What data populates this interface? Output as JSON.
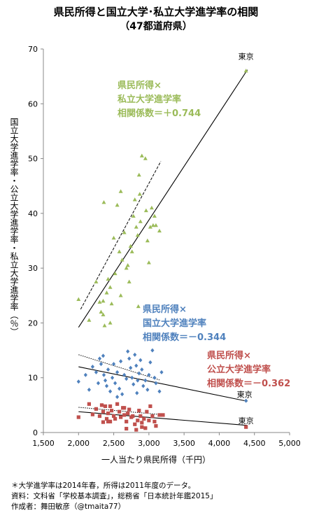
{
  "title": "県民所得と国立大学･私立大学進学率の相関",
  "subtitle": "（47都道府県）",
  "notes": [
    "＊大学進学率は2014年春，所得は2011年度のデータ。",
    "資料：文科省「学校基本調査」，総務省「日本統計年鑑2015」",
    "作成者：舞田敏彦（@tmaita77）"
  ],
  "chart_data": {
    "type": "scatter",
    "xlabel": "一人当たり県民所得（千円）",
    "ylabel": "国立大学進学率・公立大学進学率・私立大学進学率（％）",
    "xlim": [
      1500,
      5000
    ],
    "ylim": [
      0,
      70
    ],
    "xticks": [
      "1,500",
      "2,000",
      "2,500",
      "3,000",
      "3,500",
      "4,000",
      "4,500",
      "5,000"
    ],
    "xtick_values": [
      1500,
      2000,
      2500,
      3000,
      3500,
      4000,
      4500,
      5000
    ],
    "yticks": [
      "0",
      "10",
      "20",
      "30",
      "40",
      "50",
      "60",
      "70"
    ],
    "ytick_values": [
      0,
      10,
      20,
      30,
      40,
      50,
      60,
      70
    ],
    "grid": false,
    "series": [
      {
        "name": "県民所得×私立大学進学率",
        "label_lines": [
          "県民所得×",
          "私立大学進学率",
          "相関係数＝＋0.744"
        ],
        "color": "#9bbb59",
        "marker": "triangle",
        "regression": [
          [
            2000,
            19.2
          ],
          [
            4400,
            66.2
          ]
        ],
        "dashed": [
          [
            2030,
            22.5
          ],
          [
            3170,
            49.5
          ]
        ],
        "points": [
          [
            4380,
            66.0
          ],
          [
            2000,
            24.3
          ],
          [
            2150,
            20.5
          ],
          [
            2250,
            27.5
          ],
          [
            2300,
            23.8
          ],
          [
            2320,
            22.0
          ],
          [
            2350,
            21.5
          ],
          [
            2370,
            19.5
          ],
          [
            2360,
            42.0
          ],
          [
            2400,
            25.5
          ],
          [
            2420,
            28.0
          ],
          [
            2450,
            26.5
          ],
          [
            2470,
            23.5
          ],
          [
            2500,
            35.5
          ],
          [
            2520,
            29.0
          ],
          [
            2550,
            41.5
          ],
          [
            2580,
            33.0
          ],
          [
            2600,
            44.0
          ],
          [
            2620,
            31.5
          ],
          [
            2650,
            36.5
          ],
          [
            2680,
            30.0
          ],
          [
            2700,
            30.5
          ],
          [
            2720,
            27.5
          ],
          [
            2740,
            34.0
          ],
          [
            2760,
            33.0
          ],
          [
            2780,
            39.5
          ],
          [
            2800,
            42.5
          ],
          [
            2820,
            37.5
          ],
          [
            2840,
            36.0
          ],
          [
            2860,
            47.0
          ],
          [
            2870,
            43.5
          ],
          [
            2880,
            38.5
          ],
          [
            2900,
            50.5
          ],
          [
            2950,
            50.0
          ],
          [
            2960,
            40.5
          ],
          [
            2980,
            35.0
          ],
          [
            3000,
            31.0
          ],
          [
            3020,
            37.5
          ],
          [
            3040,
            41.0
          ],
          [
            3060,
            37.8
          ],
          [
            3080,
            39.5
          ],
          [
            3100,
            37.8
          ],
          [
            3150,
            36.8
          ],
          [
            2850,
            23.0
          ],
          [
            2600,
            25.0
          ],
          [
            2350,
            24.0
          ],
          [
            2450,
            20.0
          ]
        ]
      },
      {
        "name": "県民所得×国立大学進学率",
        "label_lines": [
          "県民所得×",
          "国立大学進学率",
          "相関係数＝－0.344"
        ],
        "color": "#4f81bd",
        "marker": "diamond",
        "regression": [
          [
            2000,
            12.0
          ],
          [
            4400,
            5.7
          ]
        ],
        "dashed": [
          [
            2000,
            14.2
          ],
          [
            3150,
            9.6
          ]
        ],
        "points": [
          [
            4380,
            5.8
          ],
          [
            2000,
            9.3
          ],
          [
            2100,
            10.5
          ],
          [
            2150,
            7.8
          ],
          [
            2200,
            12.0
          ],
          [
            2250,
            11.0
          ],
          [
            2280,
            9.0
          ],
          [
            2300,
            13.5
          ],
          [
            2320,
            12.5
          ],
          [
            2350,
            14.0
          ],
          [
            2360,
            10.5
          ],
          [
            2380,
            9.5
          ],
          [
            2400,
            8.5
          ],
          [
            2420,
            11.5
          ],
          [
            2450,
            7.5
          ],
          [
            2480,
            10.0
          ],
          [
            2500,
            12.5
          ],
          [
            2520,
            9.0
          ],
          [
            2550,
            11.0
          ],
          [
            2580,
            8.0
          ],
          [
            2600,
            13.0
          ],
          [
            2620,
            7.0
          ],
          [
            2650,
            10.5
          ],
          [
            2680,
            9.8
          ],
          [
            2700,
            14.8
          ],
          [
            2720,
            13.5
          ],
          [
            2740,
            11.8
          ],
          [
            2760,
            10.0
          ],
          [
            2780,
            8.8
          ],
          [
            2800,
            14.2
          ],
          [
            2820,
            12.2
          ],
          [
            2840,
            9.5
          ],
          [
            2860,
            10.8
          ],
          [
            2880,
            13.2
          ],
          [
            2900,
            11.5
          ],
          [
            2920,
            8.5
          ],
          [
            2950,
            9.5
          ],
          [
            2980,
            7.8
          ],
          [
            3000,
            10.5
          ],
          [
            3020,
            12.8
          ],
          [
            3050,
            15.0
          ],
          [
            3080,
            10.0
          ],
          [
            3100,
            9.0
          ],
          [
            3150,
            7.5
          ],
          [
            3180,
            11.0
          ],
          [
            2550,
            6.5
          ],
          [
            2830,
            7.2
          ]
        ]
      },
      {
        "name": "県民所得×公立大学進学率",
        "label_lines": [
          "県民所得×",
          "公立大学進学率",
          "相関係数＝－0.362"
        ],
        "color": "#c0504d",
        "marker": "square",
        "regression": [
          [
            2000,
            3.8
          ],
          [
            4400,
            1.3
          ]
        ],
        "dashed": [
          [
            2000,
            4.6
          ],
          [
            3150,
            3.3
          ]
        ],
        "points": [
          [
            4380,
            1.0
          ],
          [
            2000,
            2.8
          ],
          [
            2150,
            5.2
          ],
          [
            2200,
            3.3
          ],
          [
            2250,
            4.3
          ],
          [
            2300,
            3.0
          ],
          [
            2330,
            5.0
          ],
          [
            2350,
            3.8
          ],
          [
            2380,
            4.8
          ],
          [
            2400,
            2.5
          ],
          [
            2420,
            3.5
          ],
          [
            2450,
            2.0
          ],
          [
            2470,
            4.0
          ],
          [
            2500,
            3.0
          ],
          [
            2520,
            2.5
          ],
          [
            2550,
            5.2
          ],
          [
            2580,
            3.8
          ],
          [
            2600,
            2.8
          ],
          [
            2630,
            4.5
          ],
          [
            2650,
            3.2
          ],
          [
            2680,
            2.0
          ],
          [
            2700,
            3.5
          ],
          [
            2720,
            4.2
          ],
          [
            2750,
            2.8
          ],
          [
            2770,
            3.0
          ],
          [
            2800,
            1.5
          ],
          [
            2820,
            0.5
          ],
          [
            2840,
            2.2
          ],
          [
            2860,
            4.0
          ],
          [
            2880,
            3.0
          ],
          [
            2900,
            1.8
          ],
          [
            2930,
            2.5
          ],
          [
            2950,
            0.8
          ],
          [
            2970,
            3.8
          ],
          [
            3000,
            2.2
          ],
          [
            3020,
            4.8
          ],
          [
            3050,
            3.0
          ],
          [
            3080,
            2.0
          ],
          [
            3100,
            1.2
          ],
          [
            3150,
            3.2
          ],
          [
            2350,
            1.9
          ],
          [
            2420,
            2.0
          ],
          [
            2680,
            0.7
          ],
          [
            2900,
            1.0
          ],
          [
            3200,
            3.2
          ],
          [
            2450,
            4.8
          ],
          [
            2650,
            4.5
          ]
        ]
      }
    ],
    "annotations": [
      {
        "text": "東京",
        "x": 4380,
        "y": 66.0
      },
      {
        "text": "東京",
        "x": 4380,
        "y": 5.8
      },
      {
        "text": "東京",
        "x": 4380,
        "y": 1.0
      }
    ]
  }
}
